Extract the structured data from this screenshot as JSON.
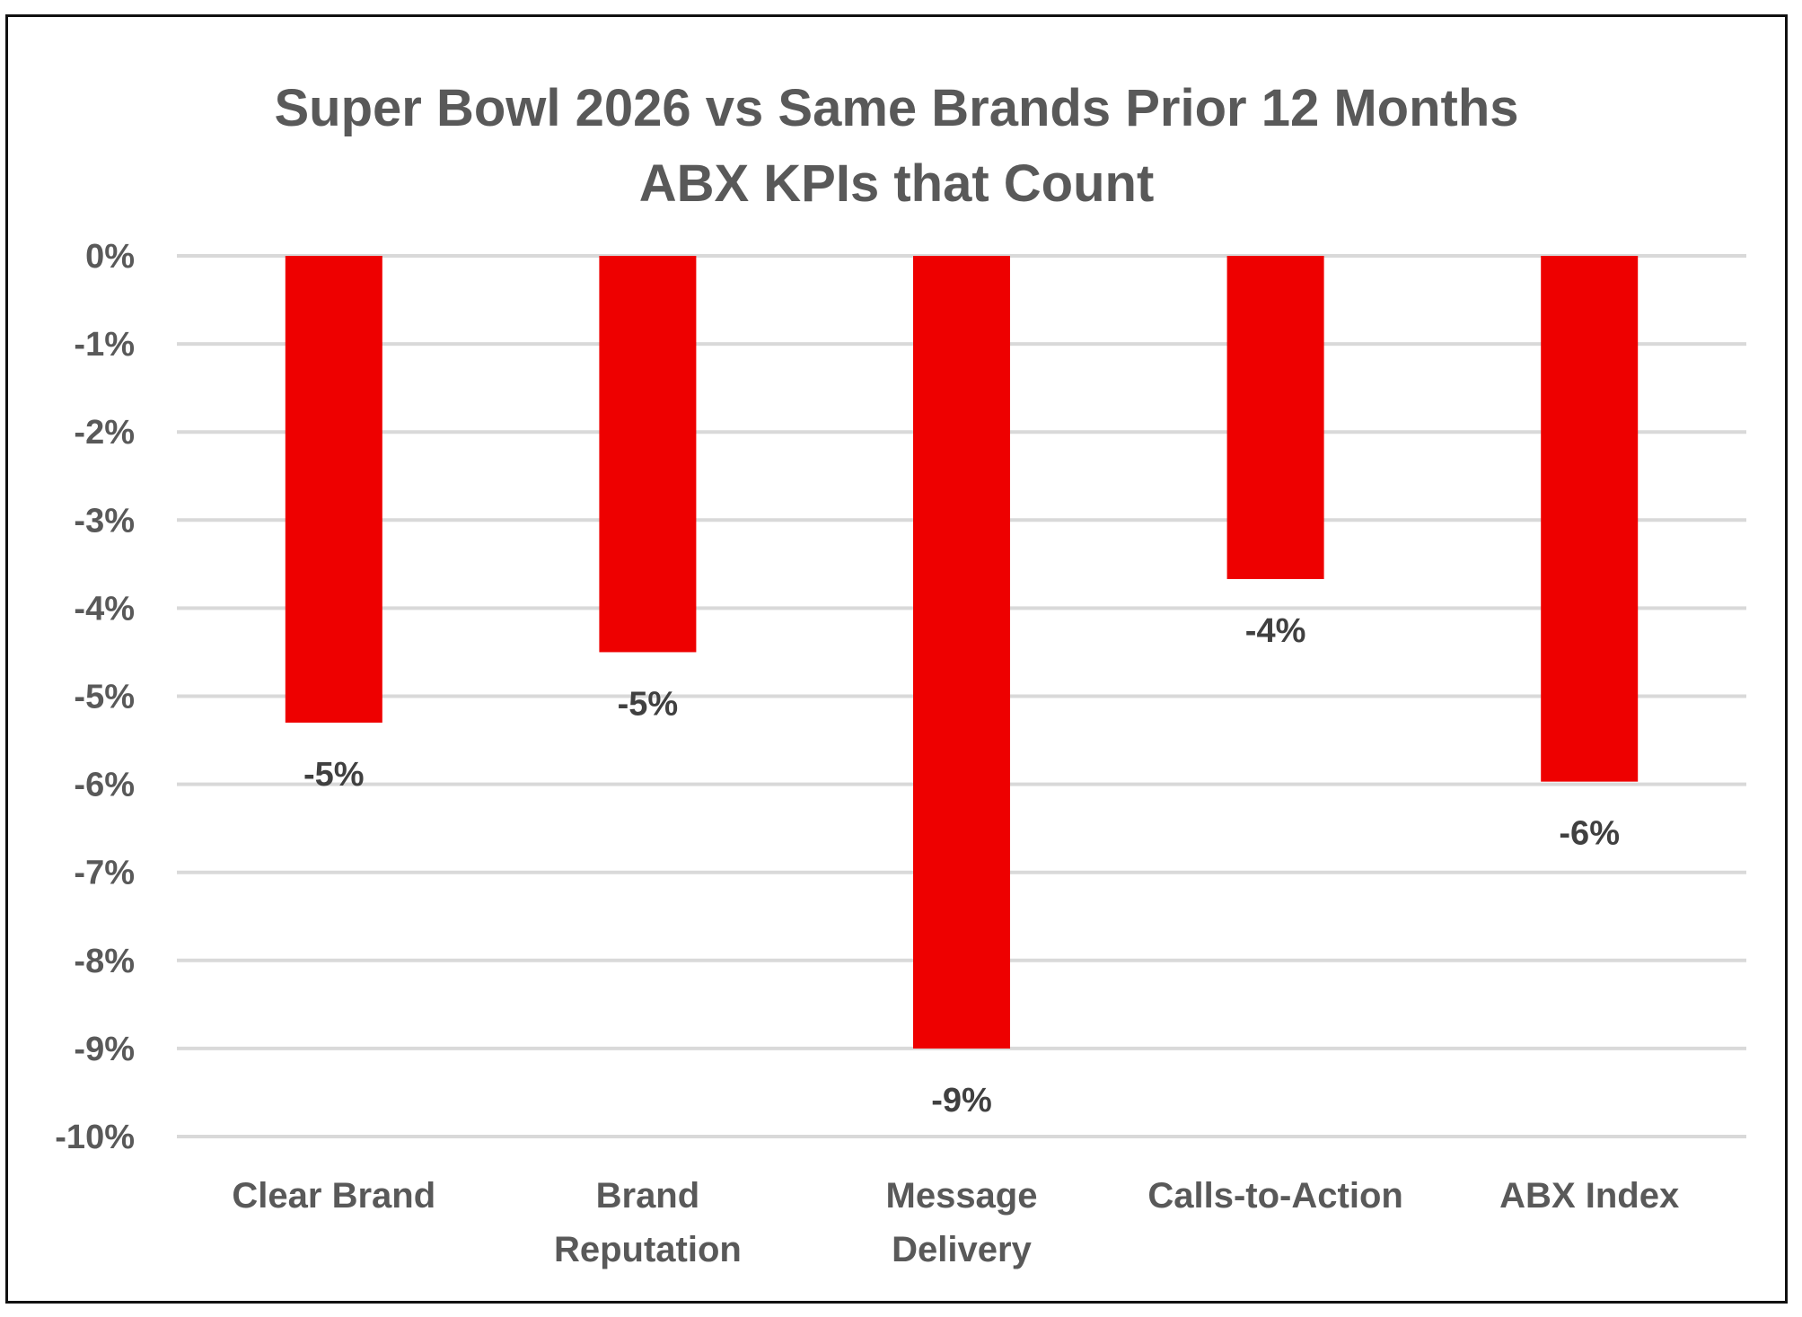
{
  "chart_data": {
    "type": "bar",
    "title": [
      "Super Bowl 2026 vs Same Brands Prior 12 Months",
      "ABX KPIs that Count"
    ],
    "categories": [
      [
        "Clear Brand"
      ],
      [
        "Brand",
        "Reputation"
      ],
      [
        "Message",
        "Delivery"
      ],
      [
        "Calls-to-Action"
      ],
      [
        "ABX Index"
      ]
    ],
    "values": [
      -5.3,
      -4.5,
      -9.0,
      -3.67,
      -5.97
    ],
    "data_labels": [
      "-5%",
      "-5%",
      "-9%",
      "-4%",
      "-6%"
    ],
    "xlabel": "",
    "ylabel": "",
    "ylim": [
      -10,
      0
    ],
    "yticks": [
      0,
      -1,
      -2,
      -3,
      -4,
      -5,
      -6,
      -7,
      -8,
      -9,
      -10
    ],
    "ytick_labels": [
      "0%",
      "-1%",
      "-2%",
      "-3%",
      "-4%",
      "-5%",
      "-6%",
      "-7%",
      "-8%",
      "-9%",
      "-10%"
    ],
    "grid": true,
    "legend": "none",
    "bar_color": "#EE0000"
  }
}
